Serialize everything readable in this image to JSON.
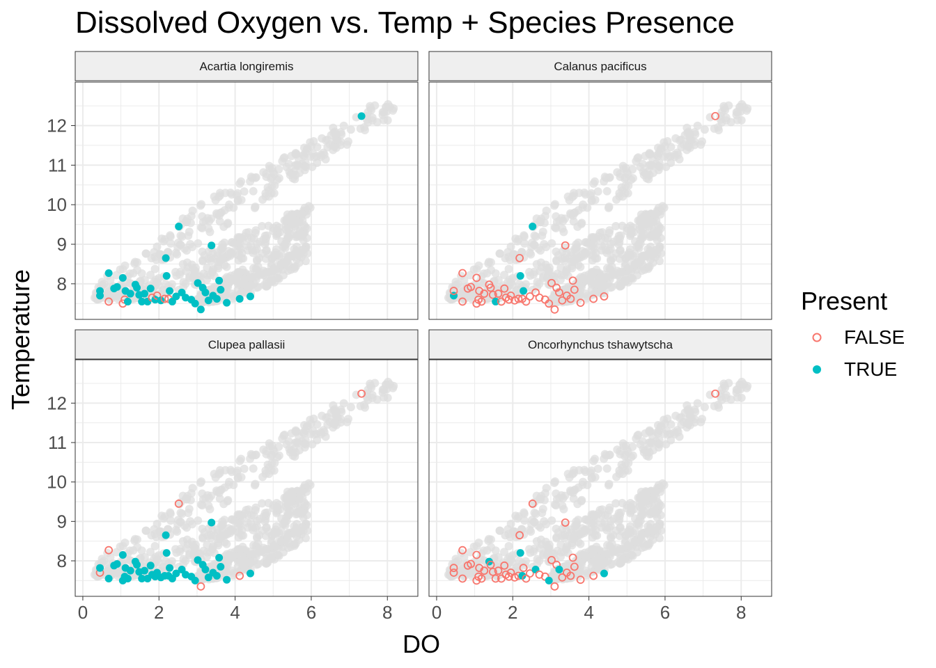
{
  "chart_data": {
    "type": "scatter",
    "title": "Dissolved Oxygen vs. Temp + Species Presence",
    "xlabel": "DO",
    "ylabel": "Temperature",
    "xlim": [
      -0.2,
      8.8
    ],
    "ylim": [
      7.1,
      13.1
    ],
    "xticks": [
      0,
      2,
      4,
      6,
      8
    ],
    "yticks": [
      8,
      9,
      10,
      11,
      12
    ],
    "grid": true,
    "legend": {
      "title": "Present",
      "position": "right",
      "entries": [
        {
          "label": "FALSE",
          "color": "#F8766D",
          "marker": "open-circle"
        },
        {
          "label": "TRUE",
          "color": "#00BFC4",
          "marker": "filled-circle"
        }
      ]
    },
    "background_points_color": "#DDDDDD",
    "background_bands": [
      {
        "x": [
          0.3,
          1.5,
          2.5,
          3.5,
          4.5,
          5.5,
          6.5,
          7.5,
          8.2
        ],
        "lo": [
          7.6,
          8.0,
          8.7,
          9.3,
          9.9,
          10.6,
          11.2,
          11.9,
          12.2
        ],
        "hi": [
          8.0,
          8.7,
          9.6,
          10.3,
          10.8,
          11.3,
          11.9,
          12.5,
          12.7
        ]
      },
      {
        "x": [
          0.3,
          1.5,
          2.5,
          3.5,
          4.5,
          5.5,
          6.0
        ],
        "lo": [
          7.6,
          7.6,
          7.7,
          8.2,
          8.8,
          9.4,
          9.7
        ],
        "hi": [
          7.7,
          7.9,
          8.5,
          9.0,
          9.4,
          9.8,
          10.0
        ]
      },
      {
        "x": [
          3.0,
          4.0,
          5.0,
          5.9
        ],
        "lo": [
          7.5,
          7.6,
          8.0,
          8.6
        ],
        "hi": [
          7.7,
          8.3,
          9.0,
          9.6
        ]
      }
    ],
    "samples": [
      [
        0.45,
        7.7
      ],
      [
        0.45,
        7.82
      ],
      [
        0.68,
        8.27
      ],
      [
        0.68,
        7.55
      ],
      [
        0.82,
        7.88
      ],
      [
        0.9,
        7.92
      ],
      [
        1.05,
        8.15
      ],
      [
        1.05,
        7.5
      ],
      [
        1.1,
        7.6
      ],
      [
        1.12,
        7.82
      ],
      [
        1.18,
        7.55
      ],
      [
        1.25,
        7.75
      ],
      [
        1.38,
        7.98
      ],
      [
        1.42,
        7.9
      ],
      [
        1.48,
        7.72
      ],
      [
        1.55,
        7.55
      ],
      [
        1.62,
        7.75
      ],
      [
        1.7,
        7.55
      ],
      [
        1.78,
        7.88
      ],
      [
        1.82,
        7.65
      ],
      [
        1.9,
        7.6
      ],
      [
        1.95,
        7.7
      ],
      [
        2.05,
        7.58
      ],
      [
        2.15,
        7.62
      ],
      [
        2.18,
        8.65
      ],
      [
        2.2,
        8.2
      ],
      [
        2.25,
        7.62
      ],
      [
        2.28,
        7.82
      ],
      [
        2.35,
        7.55
      ],
      [
        2.45,
        7.68
      ],
      [
        2.52,
        9.45
      ],
      [
        2.6,
        7.78
      ],
      [
        2.7,
        7.65
      ],
      [
        2.85,
        7.6
      ],
      [
        2.95,
        7.5
      ],
      [
        3.02,
        8.02
      ],
      [
        3.1,
        7.35
      ],
      [
        3.15,
        7.9
      ],
      [
        3.22,
        7.78
      ],
      [
        3.3,
        7.58
      ],
      [
        3.38,
        8.97
      ],
      [
        3.42,
        7.7
      ],
      [
        3.52,
        7.62
      ],
      [
        3.58,
        8.08
      ],
      [
        3.62,
        7.85
      ],
      [
        3.78,
        7.52
      ],
      [
        4.12,
        7.62
      ],
      [
        4.4,
        7.68
      ],
      [
        7.32,
        12.24
      ]
    ],
    "facets": [
      {
        "label": "Acartia longiremis",
        "present": [
          1,
          1,
          1,
          0,
          1,
          1,
          1,
          0,
          0,
          1,
          1,
          1,
          1,
          1,
          1,
          1,
          1,
          1,
          1,
          0,
          1,
          0,
          1,
          0,
          1,
          1,
          0,
          1,
          1,
          1,
          1,
          1,
          1,
          1,
          1,
          1,
          1,
          1,
          1,
          1,
          1,
          1,
          1,
          1,
          1,
          1,
          1,
          1,
          1
        ]
      },
      {
        "label": "Calanus pacificus",
        "present": [
          1,
          0,
          0,
          0,
          0,
          0,
          0,
          0,
          0,
          0,
          0,
          0,
          0,
          0,
          0,
          1,
          0,
          0,
          0,
          0,
          0,
          0,
          0,
          0,
          0,
          1,
          0,
          1,
          0,
          0,
          1,
          0,
          0,
          0,
          0,
          0,
          0,
          0,
          0,
          0,
          0,
          0,
          0,
          0,
          0,
          0,
          0,
          0,
          0
        ]
      },
      {
        "label": "Clupea pallasii",
        "present": [
          0,
          1,
          0,
          1,
          1,
          1,
          1,
          1,
          1,
          1,
          1,
          1,
          1,
          1,
          1,
          1,
          1,
          1,
          1,
          1,
          1,
          1,
          1,
          1,
          1,
          1,
          1,
          1,
          1,
          1,
          0,
          1,
          1,
          1,
          1,
          1,
          0,
          1,
          1,
          1,
          1,
          1,
          1,
          1,
          1,
          1,
          0,
          1,
          0
        ]
      },
      {
        "label": "Oncorhynchus tshawytscha",
        "present": [
          0,
          0,
          0,
          0,
          0,
          0,
          0,
          0,
          0,
          0,
          0,
          0,
          1,
          0,
          0,
          0,
          0,
          0,
          0,
          0,
          0,
          0,
          0,
          0,
          0,
          1,
          1,
          0,
          0,
          0,
          0,
          1,
          0,
          0,
          1,
          0,
          0,
          0,
          1,
          0,
          0,
          0,
          0,
          0,
          0,
          0,
          0,
          1,
          0
        ]
      }
    ]
  }
}
